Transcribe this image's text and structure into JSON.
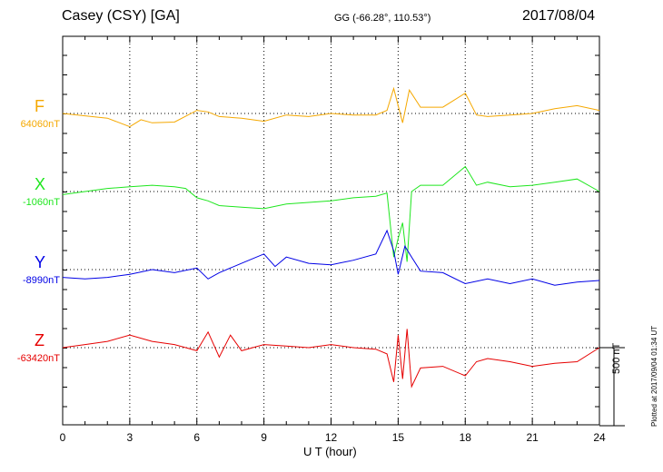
{
  "header": {
    "station": "Casey (CSY)  [GA]",
    "coords": "GG (-66.28°, 110.53°)",
    "date": "2017/08/04"
  },
  "chart_data": {
    "type": "line",
    "title": "Casey (CSY)  [GA]",
    "xlabel": "U T (hour)",
    "ylabel": "",
    "xlim": [
      0,
      24
    ],
    "x_ticks": [
      "0",
      "3",
      "6",
      "9",
      "12",
      "15",
      "18",
      "21",
      "24"
    ],
    "grid": true,
    "scale_bar": "500 nT",
    "scale_bar_nT": 500,
    "series": [
      {
        "name": "F",
        "baseline": "64060nT",
        "color": "#f5a800",
        "x": [
          0,
          1,
          2,
          3,
          3.5,
          4,
          5,
          6,
          6.5,
          7,
          8,
          9,
          10,
          11,
          12,
          13,
          14,
          14.5,
          14.8,
          15,
          15.2,
          15.5,
          16,
          17,
          18,
          18.5,
          19,
          20,
          21,
          22,
          23,
          24
        ],
        "y": [
          0,
          -15,
          -30,
          -85,
          -40,
          -60,
          -55,
          20,
          10,
          -20,
          -30,
          -50,
          -10,
          -20,
          0,
          -10,
          -10,
          20,
          160,
          50,
          -60,
          150,
          40,
          40,
          130,
          -10,
          -20,
          -10,
          0,
          30,
          50,
          20
        ]
      },
      {
        "name": "X",
        "baseline": "-1060nT",
        "color": "#1ee61e",
        "x": [
          0,
          1,
          2,
          3,
          4,
          5,
          5.5,
          6,
          6.5,
          7,
          8,
          9,
          10,
          11,
          12,
          13,
          14,
          14.5,
          14.8,
          15,
          15.2,
          15.4,
          15.6,
          16,
          17,
          18,
          18.5,
          19,
          20,
          21,
          22,
          23,
          24
        ],
        "y": [
          -20,
          0,
          20,
          30,
          40,
          30,
          20,
          -40,
          -60,
          -90,
          -100,
          -110,
          -80,
          -70,
          -60,
          -40,
          -30,
          -10,
          -420,
          -300,
          -200,
          -450,
          0,
          40,
          40,
          160,
          40,
          60,
          30,
          40,
          60,
          80,
          0
        ]
      },
      {
        "name": "Y",
        "baseline": "-8990nT",
        "color": "#0000e6",
        "x": [
          0,
          1,
          2,
          3,
          4,
          5,
          6,
          6.5,
          7,
          8,
          9,
          9.5,
          10,
          11,
          12,
          13,
          14,
          14.5,
          14.8,
          15,
          15.3,
          15.6,
          16,
          17,
          18,
          19,
          20,
          21,
          22,
          23,
          24
        ],
        "y": [
          -50,
          -60,
          -50,
          -30,
          0,
          -20,
          10,
          -60,
          -20,
          40,
          100,
          20,
          80,
          40,
          30,
          60,
          100,
          250,
          120,
          -30,
          150,
          80,
          -10,
          -20,
          -90,
          -60,
          -90,
          -60,
          -100,
          -80,
          -70
        ]
      },
      {
        "name": "Z",
        "baseline": "-63420nT",
        "color": "#e60000",
        "x": [
          0,
          1,
          2,
          3,
          4,
          5,
          6,
          6.5,
          7,
          7.5,
          8,
          9,
          10,
          11,
          12,
          13,
          14,
          14.5,
          14.8,
          15,
          15.2,
          15.4,
          15.6,
          16,
          17,
          18,
          18.5,
          19,
          20,
          21,
          22,
          23,
          24
        ],
        "y": [
          0,
          20,
          40,
          80,
          40,
          20,
          -20,
          100,
          -60,
          80,
          -20,
          20,
          10,
          0,
          20,
          0,
          -10,
          -40,
          -220,
          80,
          -200,
          120,
          -250,
          -130,
          -120,
          -180,
          -90,
          -70,
          -90,
          -120,
          -100,
          -90,
          0
        ]
      }
    ]
  },
  "footer": {
    "xaxis_title": "U T (hour)",
    "scale_label": "500 nT",
    "plotted": "Plotted at 2017/09/04 01:34 UT"
  }
}
